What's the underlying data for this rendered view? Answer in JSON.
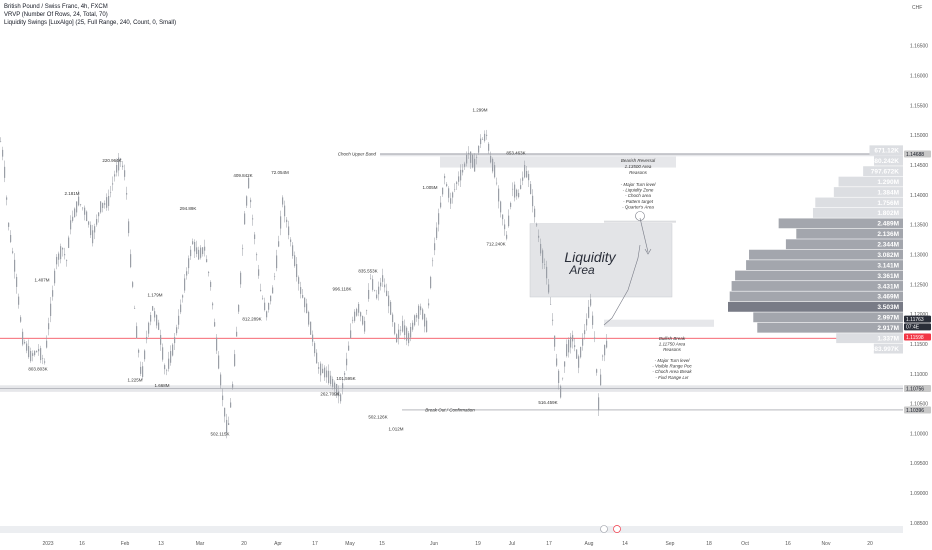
{
  "header": {
    "title": "British Pound / Swiss Franc, 4h, FXCM",
    "indicator1": "VRVP (Number Of Rows, 24, Total, 70)",
    "indicator2": "Liquidity Swings [LuxAlgo] (25, Full Range, 240, Count, 0, Small)"
  },
  "currency": "CHF",
  "chart_data": {
    "type": "candlestick",
    "symbol": "GBPCHF",
    "timeframe": "4h",
    "y_ticks": [
      "1.16500",
      "1.16000",
      "1.15500",
      "1.15000",
      "1.14500",
      "1.14000",
      "1.13500",
      "1.13000",
      "1.12500",
      "1.12000",
      "1.11500",
      "1.11000",
      "1.10500",
      "1.10000",
      "1.09500",
      "1.09000",
      "1.08500"
    ],
    "ylim": [
      1.083,
      1.168
    ],
    "x_ticks": [
      "2023",
      "16",
      "Feb",
      "13",
      "Mar",
      "20",
      "Apr",
      "17",
      "May",
      "15",
      "Jun",
      "19",
      "Jul",
      "17",
      "Aug",
      "14",
      "Sep",
      "18",
      "Oct",
      "16",
      "Nov",
      "20"
    ],
    "path": [
      [
        0,
        1.149
      ],
      [
        3,
        1.146
      ],
      [
        8,
        1.135
      ],
      [
        15,
        1.127
      ],
      [
        22,
        1.116
      ],
      [
        30,
        1.113
      ],
      [
        38,
        1.114
      ],
      [
        44,
        1.112
      ],
      [
        48,
        1.118
      ],
      [
        56,
        1.129
      ],
      [
        62,
        1.131
      ],
      [
        66,
        1.129
      ],
      [
        70,
        1.135
      ],
      [
        78,
        1.139
      ],
      [
        85,
        1.137
      ],
      [
        92,
        1.133
      ],
      [
        100,
        1.138
      ],
      [
        108,
        1.139
      ],
      [
        115,
        1.144
      ],
      [
        120,
        1.146
      ],
      [
        125,
        1.143
      ],
      [
        130,
        1.129
      ],
      [
        136,
        1.117
      ],
      [
        141,
        1.109
      ],
      [
        146,
        1.116
      ],
      [
        152,
        1.121
      ],
      [
        158,
        1.118
      ],
      [
        165,
        1.11
      ],
      [
        172,
        1.114
      ],
      [
        178,
        1.119
      ],
      [
        185,
        1.126
      ],
      [
        192,
        1.132
      ],
      [
        198,
        1.13
      ],
      [
        204,
        1.131
      ],
      [
        210,
        1.125
      ],
      [
        216,
        1.115
      ],
      [
        222,
        1.106
      ],
      [
        227,
        1.1
      ],
      [
        232,
        1.108
      ],
      [
        238,
        1.121
      ],
      [
        244,
        1.136
      ],
      [
        248,
        1.142
      ],
      [
        254,
        1.133
      ],
      [
        260,
        1.124
      ],
      [
        266,
        1.12
      ],
      [
        272,
        1.124
      ],
      [
        277,
        1.13
      ],
      [
        282,
        1.139
      ],
      [
        288,
        1.134
      ],
      [
        294,
        1.129
      ],
      [
        300,
        1.124
      ],
      [
        306,
        1.121
      ],
      [
        312,
        1.116
      ],
      [
        318,
        1.111
      ],
      [
        326,
        1.11
      ],
      [
        334,
        1.108
      ],
      [
        340,
        1.106
      ],
      [
        346,
        1.112
      ],
      [
        352,
        1.119
      ],
      [
        358,
        1.121
      ],
      [
        364,
        1.118
      ],
      [
        370,
        1.126
      ],
      [
        376,
        1.123
      ],
      [
        382,
        1.126
      ],
      [
        390,
        1.121
      ],
      [
        396,
        1.116
      ],
      [
        402,
        1.118
      ],
      [
        408,
        1.116
      ],
      [
        414,
        1.119
      ],
      [
        420,
        1.121
      ],
      [
        426,
        1.118
      ],
      [
        432,
        1.129
      ],
      [
        438,
        1.136
      ],
      [
        444,
        1.143
      ],
      [
        450,
        1.139
      ],
      [
        456,
        1.142
      ],
      [
        462,
        1.144
      ],
      [
        468,
        1.147
      ],
      [
        474,
        1.145
      ],
      [
        480,
        1.149
      ],
      [
        486,
        1.15
      ],
      [
        490,
        1.146
      ],
      [
        494,
        1.144
      ],
      [
        500,
        1.138
      ],
      [
        506,
        1.133
      ],
      [
        512,
        1.141
      ],
      [
        518,
        1.14
      ],
      [
        524,
        1.144
      ],
      [
        528,
        1.143
      ],
      [
        534,
        1.137
      ],
      [
        540,
        1.131
      ],
      [
        546,
        1.127
      ],
      [
        552,
        1.119
      ],
      [
        556,
        1.112
      ],
      [
        560,
        1.107
      ],
      [
        566,
        1.114
      ],
      [
        572,
        1.116
      ],
      [
        578,
        1.112
      ],
      [
        584,
        1.117
      ],
      [
        590,
        1.122
      ],
      [
        594,
        1.116
      ],
      [
        598,
        1.105
      ],
      [
        602,
        1.113
      ],
      [
        606,
        1.115
      ]
    ],
    "volume_profile": [
      {
        "label": "671.12K",
        "price": 1.1475,
        "value": 0.671
      },
      {
        "label": "580.242K",
        "price": 1.14575,
        "value": 0.58
      },
      {
        "label": "797.672K",
        "price": 1.144,
        "value": 0.798
      },
      {
        "label": "1.290M",
        "price": 1.14225,
        "value": 1.29
      },
      {
        "label": "1.384M",
        "price": 1.1405,
        "value": 1.384
      },
      {
        "label": "1.756M",
        "price": 1.13875,
        "value": 1.756
      },
      {
        "label": "1.802M",
        "price": 1.137,
        "value": 1.802
      },
      {
        "label": "2.489M",
        "price": 1.13525,
        "value": 2.489
      },
      {
        "label": "2.136M",
        "price": 1.1335,
        "value": 2.136
      },
      {
        "label": "2.344M",
        "price": 1.13175,
        "value": 2.344
      },
      {
        "label": "3.082M",
        "price": 1.13,
        "value": 3.082
      },
      {
        "label": "3.141M",
        "price": 1.12825,
        "value": 3.141
      },
      {
        "label": "3.361M",
        "price": 1.1265,
        "value": 3.361
      },
      {
        "label": "3.431M",
        "price": 1.12475,
        "value": 3.431
      },
      {
        "label": "3.469M",
        "price": 1.123,
        "value": 3.469
      },
      {
        "label": "3.503M",
        "price": 1.12125,
        "value": 3.503
      },
      {
        "label": "2.997M",
        "price": 1.1195,
        "value": 2.997
      },
      {
        "label": "2.917M",
        "price": 1.11775,
        "value": 2.917
      },
      {
        "label": "1.337M",
        "price": 1.116,
        "value": 1.337
      },
      {
        "label": "583.997K",
        "price": 1.11425,
        "value": 0.584
      }
    ],
    "swing_labels": [
      {
        "text": "1.407M",
        "x": 42,
        "price": 1.1255
      },
      {
        "text": "2.181M",
        "x": 72,
        "price": 1.14
      },
      {
        "text": "220.964K",
        "x": 112,
        "price": 1.1455
      },
      {
        "text": "1.179M",
        "x": 155,
        "price": 1.123
      },
      {
        "text": "294.89K",
        "x": 188,
        "price": 1.1375
      },
      {
        "text": "409.842K",
        "x": 243,
        "price": 1.143
      },
      {
        "text": "72.054M",
        "x": 280,
        "price": 1.1435
      },
      {
        "text": "812.289K",
        "x": 252,
        "price": 1.119
      },
      {
        "text": "996.118K",
        "x": 342,
        "price": 1.124
      },
      {
        "text": "835.553K",
        "x": 368,
        "price": 1.127
      },
      {
        "text": "502.126K",
        "x": 378,
        "price": 1.1025
      },
      {
        "text": "1.012M",
        "x": 396,
        "price": 1.1005
      },
      {
        "text": "1.005M",
        "x": 430,
        "price": 1.141
      },
      {
        "text": "1.299M",
        "x": 480,
        "price": 1.154
      },
      {
        "text": "853.463K",
        "x": 516,
        "price": 1.1468
      },
      {
        "text": "712.240K",
        "x": 496,
        "price": 1.1315
      },
      {
        "text": "803.803K",
        "x": 38,
        "price": 1.1106
      },
      {
        "text": "1.225M",
        "x": 135,
        "price": 1.1087
      },
      {
        "text": "1.668M",
        "x": 162,
        "price": 1.1078
      },
      {
        "text": "502.115K",
        "x": 220,
        "price": 1.0997
      },
      {
        "text": "101.595K",
        "x": 346,
        "price": 1.109
      },
      {
        "text": "262.709K",
        "x": 330,
        "price": 1.1064
      },
      {
        "text": "516.459K",
        "x": 548,
        "price": 1.105
      }
    ],
    "annotations": {
      "choch_upper_band": "Choch Upper Band",
      "choch_price": 1.14688,
      "bearish_title": "Bearish Reversal",
      "bearish_area": "1.13500 Area",
      "reasons": "Reasons",
      "bearish_reasons": [
        "- Major Turn level",
        "- Liquidity Zone",
        "- Choch area",
        "- Pattern target",
        "- Quarter's Area"
      ],
      "liquidity_line1": "Liquidity",
      "liquidity_line2": "Area",
      "bullish_title": "Bullish Break",
      "bullish_area": "1.11750 Area",
      "bullish_reasons": [
        "- Major Turn level",
        "- Visible Range Poc",
        "- Choch Area Break",
        "- Fixd Range Lvr"
      ],
      "breakout_text": "Break Out / Confirmation",
      "breakout_price": 1.10396
    },
    "price_labels": [
      {
        "text": "1.14688",
        "price": 1.14688,
        "bg": "#c8c8c8",
        "fg": "#131722"
      },
      {
        "text": "1.11763",
        "price": 1.1192,
        "bg": "#2a2e39",
        "fg": "#ffffff"
      },
      {
        "text": "07:4E",
        "price": 1.1179,
        "bg": "#2a2e39",
        "fg": "#ffffff"
      },
      {
        "text": "1.11598",
        "price": 1.1162,
        "bg": "#f23645",
        "fg": "#ffffff"
      },
      {
        "text": "1.10756",
        "price": 1.10756,
        "bg": "#c8c8c8",
        "fg": "#131722"
      },
      {
        "text": "1.10396",
        "price": 1.10396,
        "bg": "#c8c8c8",
        "fg": "#131722"
      }
    ],
    "red_line_price": 1.11598,
    "colors": {
      "candle": "#9a9ea6",
      "band": "#e6e7ea",
      "profile": "#a3a6ad",
      "poc": "#787b86",
      "red": "#f23645",
      "text": "#131722"
    }
  }
}
